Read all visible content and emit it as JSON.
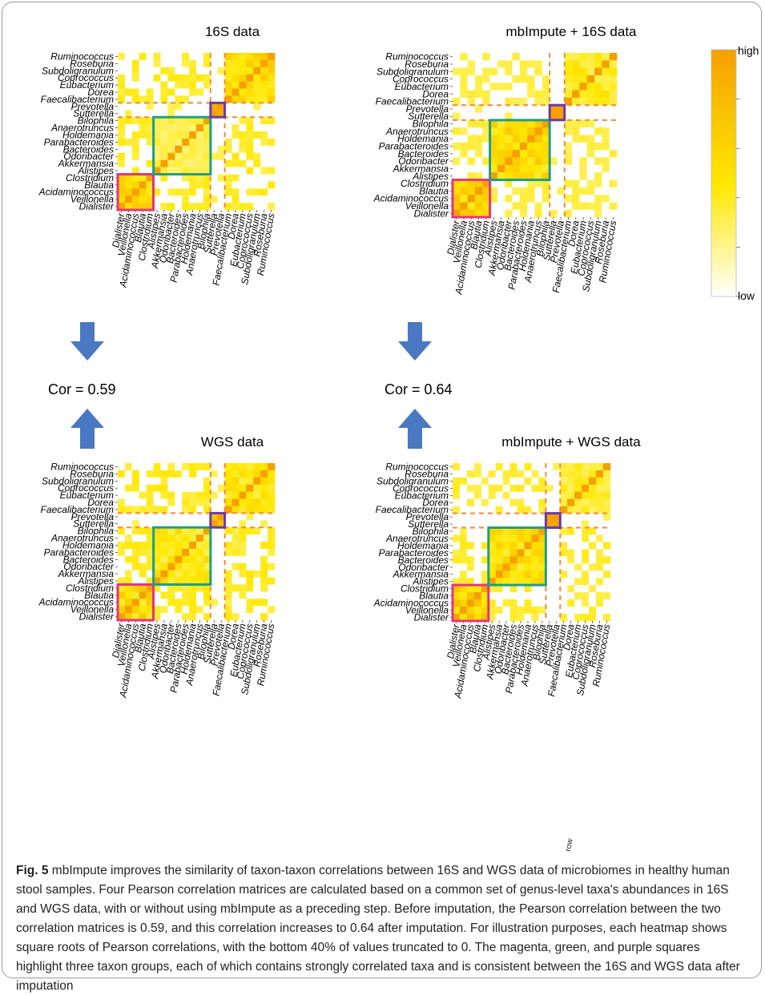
{
  "figure": {
    "caption_label": "Fig. 5",
    "caption_text": "mbImpute improves the similarity of taxon-taxon correlations between 16S and WGS data of microbiomes in healthy human stool samples. Four Pearson correlation matrices are calculated based on a common set of genus-level taxa's abundances in 16S and WGS data, with or without using mbImpute as a preceding step. Before imputation, the Pearson correlation between the two correlation matrices is 0.59, and this correlation increases to 0.64 after imputation. For illustration purposes, each heatmap shows square roots of Pearson correlations, with the bottom 40% of values truncated to 0. The magenta, green, and purple squares highlight three taxon groups, each of which contains strongly correlated taxa and is consistent between the 16S and WGS data after imputation",
    "stray_label": "row",
    "colors": {
      "magenta": "#e2367e",
      "green": "#1f9e86",
      "purple": "#6a3aa6",
      "dashed": "#f08a3a",
      "arrow": "#4a78c2",
      "low": "#ffffff",
      "mid": "#ffe800",
      "high": "#f5a000"
    }
  },
  "chart_data": [
    {
      "type": "heatmap",
      "title": "16S data",
      "taxa": [
        "Dialister",
        "Veillonella",
        "Acidaminococcus",
        "Blautia",
        "Clostridium",
        "Alistipes",
        "Akkermansia",
        "Odoribacter",
        "Bacteroides",
        "Parabacteroides",
        "Holdemania",
        "Anaerotruncus",
        "Bilophila",
        "Sutterella",
        "Prevotella",
        "Faecalibacterium",
        "Dorea",
        "Eubacterium",
        "Coprococcus",
        "Subdoligranulum",
        "Roseburia",
        "Ruminococcus"
      ],
      "value_scale": "sqrt of Pearson correlation, bottom 40% truncated to 0",
      "highlight_groups": {
        "magenta": [
          "Dialister",
          "Veillonella",
          "Acidaminococcus",
          "Blautia",
          "Clostridium"
        ],
        "green": [
          "Alistipes",
          "Akkermansia",
          "Odoribacter",
          "Bacteroides",
          "Parabacteroides",
          "Holdemania",
          "Anaerotruncus",
          "Bilophila"
        ],
        "purple": [
          "Sutterella",
          "Prevotella"
        ]
      }
    },
    {
      "type": "heatmap",
      "title": "mbImpute + 16S data",
      "taxa": [
        "Dialister",
        "Veillonella",
        "Acidaminococcus",
        "Blautia",
        "Clostridium",
        "Alistipes",
        "Akkermansia",
        "Odoribacter",
        "Bacteroides",
        "Parabacteroides",
        "Holdemania",
        "Anaerotruncus",
        "Bilophila",
        "Sutterella",
        "Prevotella",
        "Faecalibacterium",
        "Dorea",
        "Eubacterium",
        "Coprococcus",
        "Subdoligranulum",
        "Roseburia",
        "Ruminococcus"
      ],
      "legend": {
        "high": "high",
        "low": "low"
      }
    },
    {
      "type": "heatmap",
      "title": "WGS data",
      "taxa": [
        "Dialister",
        "Veillonella",
        "Acidaminococcus",
        "Blautia",
        "Clostridium",
        "Alistipes",
        "Akkermansia",
        "Odoribacter",
        "Bacteroides",
        "Parabacteroides",
        "Holdemania",
        "Anaerotruncus",
        "Bilophila",
        "Sutterella",
        "Prevotella",
        "Faecalibacterium",
        "Dorea",
        "Eubacterium",
        "Coprococcus",
        "Subdoligranulum",
        "Roseburia",
        "Ruminococcus"
      ]
    },
    {
      "type": "heatmap",
      "title": "mbImpute + WGS data",
      "taxa": [
        "Dialister",
        "Veillonella",
        "Acidaminococcus",
        "Blautia",
        "Clostridium",
        "Alistipes",
        "Akkermansia",
        "Odoribacter",
        "Bacteroides",
        "Parabacteroides",
        "Holdemania",
        "Anaerotruncus",
        "Bilophila",
        "Sutterella",
        "Prevotella",
        "Faecalibacterium",
        "Dorea",
        "Eubacterium",
        "Coprococcus",
        "Subdoligranulum",
        "Roseburia",
        "Ruminococcus"
      ]
    }
  ],
  "correlations": [
    {
      "label": "Cor = 0.59",
      "between": [
        "16S data",
        "WGS data"
      ],
      "value": 0.59
    },
    {
      "label": "Cor = 0.64",
      "between": [
        "mbImpute + 16S data",
        "mbImpute + WGS data"
      ],
      "value": 0.64
    }
  ]
}
